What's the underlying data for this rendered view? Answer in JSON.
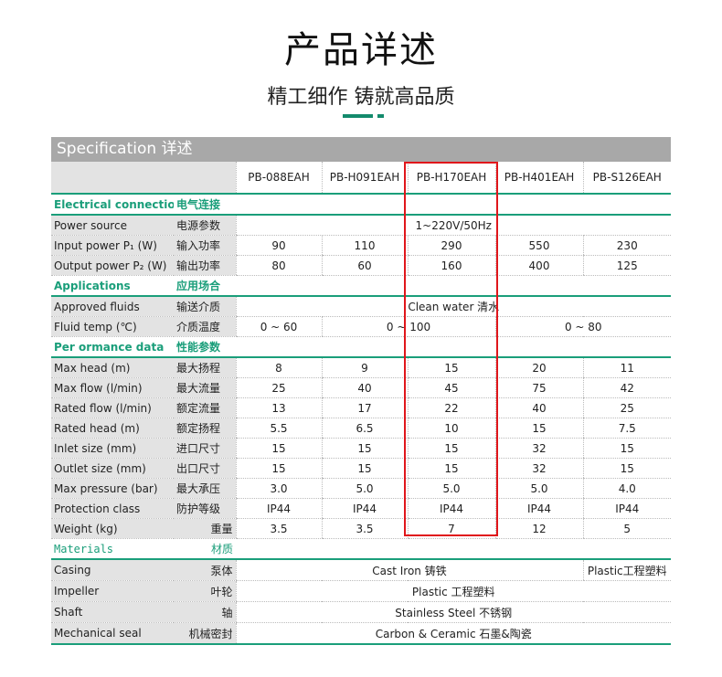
{
  "header": {
    "title": "产品详述",
    "subtitle": "精工细作 铸就高品质"
  },
  "spec_title": "Specification  详述",
  "colors": {
    "accent": "#1a9e7a",
    "highlight": "#e0161b",
    "header_bg": "#a8a8a8",
    "label_bg": "#e3e3e3"
  },
  "models": [
    "PB-088EAH",
    "PB-H091EAH",
    "PB-H170EAH",
    "PB-H401EAH",
    "PB-S126EAH"
  ],
  "highlighted_model": "PB-H170EAH",
  "rows": [
    {
      "type": "section",
      "en": "Electrical connection",
      "cn": "电气连接"
    },
    {
      "type": "row",
      "en": "Power source",
      "cn": "电源参数",
      "cells": [
        {
          "t": "1~220V/50Hz",
          "s": 5
        }
      ]
    },
    {
      "type": "row",
      "en": "Input power P₁ (W)",
      "cn": "输入功率",
      "cells": [
        {
          "t": "90"
        },
        {
          "t": "110"
        },
        {
          "t": "290"
        },
        {
          "t": "550"
        },
        {
          "t": "230"
        }
      ]
    },
    {
      "type": "row",
      "en": "Output power P₂ (W)",
      "cn": "输出功率",
      "cells": [
        {
          "t": "80"
        },
        {
          "t": "60"
        },
        {
          "t": "160"
        },
        {
          "t": "400"
        },
        {
          "t": "125"
        }
      ]
    },
    {
      "type": "section",
      "en": "Applications",
      "cn": "应用场合"
    },
    {
      "type": "row",
      "en": "Approved fluids",
      "cn": "输送介质",
      "cells": [
        {
          "t": "Clean water  清水",
          "s": 5
        }
      ]
    },
    {
      "type": "row",
      "en": "Fluid temp (℃)",
      "cn": "介质温度",
      "cells": [
        {
          "t": "0 ~ 60"
        },
        {
          "t": "0 ~ 100",
          "s": 2
        },
        {
          "t": "0 ~ 80",
          "s": 2
        }
      ]
    },
    {
      "type": "section",
      "en": "Per ormance data",
      "cn": "性能参数"
    },
    {
      "type": "row",
      "en": "Max head (m)",
      "cn": "最大扬程",
      "cells": [
        {
          "t": "8"
        },
        {
          "t": "9"
        },
        {
          "t": "15"
        },
        {
          "t": "20"
        },
        {
          "t": "11"
        }
      ]
    },
    {
      "type": "row",
      "en": "Max flow (l/min)",
      "cn": "最大流量",
      "cells": [
        {
          "t": "25"
        },
        {
          "t": "40"
        },
        {
          "t": "45"
        },
        {
          "t": "75"
        },
        {
          "t": "42"
        }
      ]
    },
    {
      "type": "row",
      "en": "Rated flow (l/min)",
      "cn": "额定流量",
      "cells": [
        {
          "t": "13"
        },
        {
          "t": "17"
        },
        {
          "t": "22"
        },
        {
          "t": "40"
        },
        {
          "t": "25"
        }
      ]
    },
    {
      "type": "row",
      "en": "Rated head (m)",
      "cn": "额定扬程",
      "cells": [
        {
          "t": "5.5"
        },
        {
          "t": "6.5"
        },
        {
          "t": "10"
        },
        {
          "t": "15"
        },
        {
          "t": "7.5"
        }
      ]
    },
    {
      "type": "row",
      "en": "Inlet size (mm)",
      "cn": "进口尺寸",
      "cells": [
        {
          "t": "15"
        },
        {
          "t": "15"
        },
        {
          "t": "15"
        },
        {
          "t": "32"
        },
        {
          "t": "15"
        }
      ]
    },
    {
      "type": "row",
      "en": "Outlet size (mm)",
      "cn": "出口尺寸",
      "cells": [
        {
          "t": "15"
        },
        {
          "t": "15"
        },
        {
          "t": "15"
        },
        {
          "t": "32"
        },
        {
          "t": "15"
        }
      ]
    },
    {
      "type": "row",
      "en": "Max pressure (bar)",
      "cn": "最大承压",
      "cells": [
        {
          "t": "3.0"
        },
        {
          "t": "5.0"
        },
        {
          "t": "5.0"
        },
        {
          "t": "5.0"
        },
        {
          "t": "4.0"
        }
      ]
    },
    {
      "type": "row",
      "en": "Protection class",
      "cn": "防护等级",
      "cells": [
        {
          "t": "IP44"
        },
        {
          "t": "IP44"
        },
        {
          "t": "IP44"
        },
        {
          "t": "IP44"
        },
        {
          "t": "IP44"
        }
      ]
    },
    {
      "type": "row",
      "en": "Weight  (kg)",
      "cn": "重量",
      "cn_right": true,
      "cells": [
        {
          "t": "3.5"
        },
        {
          "t": "3.5"
        },
        {
          "t": "7"
        },
        {
          "t": "12"
        },
        {
          "t": "5"
        }
      ]
    },
    {
      "type": "material-section",
      "en": "Materials",
      "cn": "材质"
    },
    {
      "type": "mrow",
      "en": "Casing",
      "cn": "泵体",
      "cells": [
        {
          "t": "Cast Iron  铸铁",
          "s": 4
        },
        {
          "t": "Plastic工程塑料"
        }
      ]
    },
    {
      "type": "mrow",
      "en": "Impeller",
      "cn": "叶轮",
      "cells": [
        {
          "t": "Plastic   工程塑料",
          "s": 5
        }
      ]
    },
    {
      "type": "mrow",
      "en": "Shaft",
      "cn": "轴",
      "cells": [
        {
          "t": "Stainless Steel  不锈钢",
          "s": 5
        }
      ]
    },
    {
      "type": "mrow",
      "en": "Mechanical seal",
      "cn": "机械密封",
      "last": true,
      "cells": [
        {
          "t": "Carbon & Ceramic  石墨&陶瓷",
          "s": 5
        }
      ]
    }
  ]
}
